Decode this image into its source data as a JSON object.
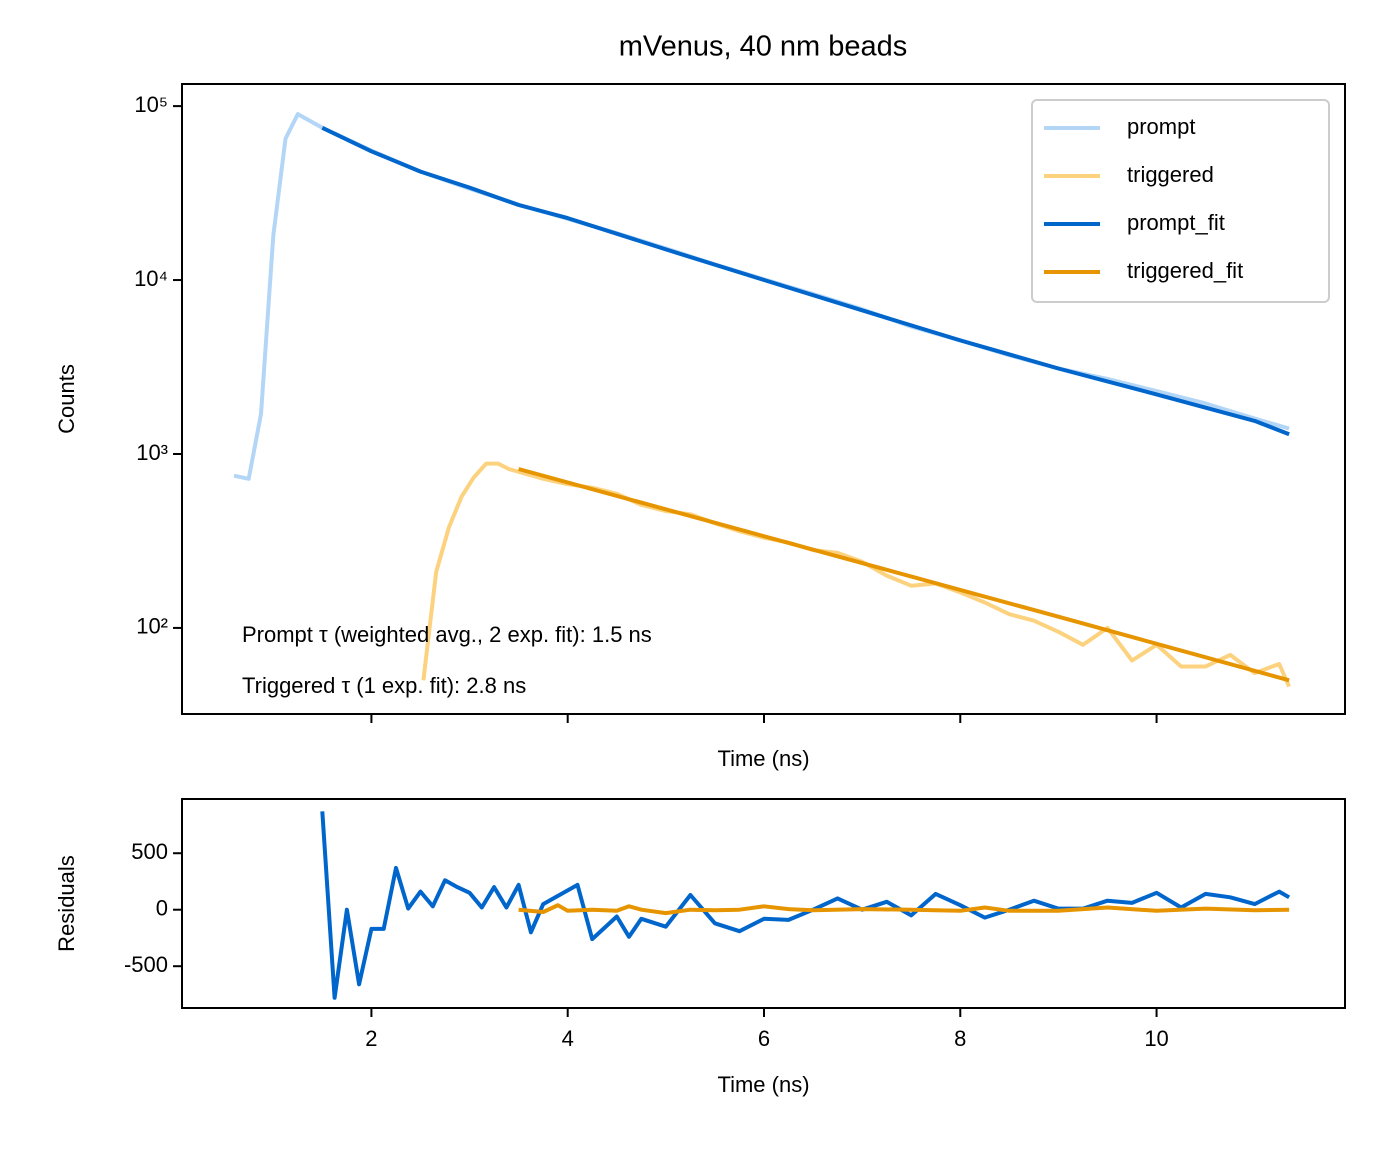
{
  "chart_data": [
    {
      "type": "line",
      "title": "mVenus, 40 nm beads",
      "xlabel": "Time (ns)",
      "ylabel": "Counts",
      "yscale": "log",
      "xlim": [
        0.07,
        11.92
      ],
      "xticks": [
        2,
        4,
        6,
        8,
        10
      ],
      "ylim": [
        32,
        134000
      ],
      "yticks": [
        {
          "value": 100,
          "label": "10²"
        },
        {
          "value": 1000,
          "label": "10³"
        },
        {
          "value": 10000,
          "label": "10⁴"
        },
        {
          "value": 100000,
          "label": "10⁵"
        }
      ],
      "legend": "upper right",
      "annotations": [
        "Prompt τ (weighted avg., 2 exp. fit): 1.5 ns",
        "Triggered τ (1 exp. fit): 2.8 ns"
      ],
      "series": [
        {
          "name": "prompt",
          "color": "#b3d6f6",
          "x": [
            0.6,
            0.75,
            0.875,
            1.0,
            1.125,
            1.25,
            1.5,
            2,
            2.5,
            3,
            3.5,
            4,
            4.5,
            5,
            5.5,
            6,
            6.5,
            7,
            7.5,
            8,
            8.5,
            9,
            9.5,
            10,
            10.5,
            11,
            11.35
          ],
          "values": [
            750,
            720,
            1700,
            18000,
            65000,
            90000,
            75000,
            55500,
            42000,
            33500,
            27200,
            22500,
            18600,
            15200,
            12300,
            10100,
            8300,
            6800,
            5400,
            4500,
            3700,
            3100,
            2700,
            2300,
            1950,
            1600,
            1400
          ]
        },
        {
          "name": "triggered",
          "color": "#fcd27f",
          "x": [
            2.53,
            2.66,
            2.79,
            2.92,
            3.04,
            3.17,
            3.29,
            3.4,
            3.75,
            4,
            4.25,
            4.5,
            4.75,
            5,
            5.25,
            5.5,
            5.75,
            6,
            6.25,
            6.5,
            6.75,
            7,
            7.25,
            7.5,
            7.75,
            8,
            8.25,
            8.5,
            8.75,
            9,
            9.25,
            9.5,
            9.75,
            10,
            10.25,
            10.5,
            10.75,
            11,
            11.25,
            11.35
          ],
          "values": [
            50,
            210,
            380,
            570,
            730,
            880,
            880,
            820,
            720,
            670,
            640,
            590,
            510,
            470,
            450,
            400,
            360,
            330,
            310,
            280,
            270,
            240,
            200,
            175,
            180,
            160,
            140,
            120,
            110,
            95,
            80,
            100,
            65,
            80,
            60,
            60,
            70,
            55,
            62,
            46
          ]
        },
        {
          "name": "prompt_fit",
          "color": "#0066cc",
          "x": [
            1.5,
            2,
            2.5,
            3,
            3.5,
            4,
            5,
            6,
            7,
            8,
            9,
            10,
            11,
            11.35
          ],
          "values": [
            75000,
            55000,
            42000,
            34000,
            27000,
            22700,
            15000,
            10000,
            6700,
            4500,
            3100,
            2200,
            1550,
            1300
          ]
        },
        {
          "name": "triggered_fit",
          "color": "#e69500",
          "x": [
            3.5,
            5,
            7,
            9,
            11.35
          ],
          "values": [
            820,
            481,
            236,
            116,
            50
          ]
        }
      ]
    },
    {
      "type": "line",
      "xlabel": "Time (ns)",
      "ylabel": "Residuals",
      "xlim": [
        0.07,
        11.92
      ],
      "xticks": [
        2,
        4,
        6,
        8,
        10
      ],
      "ylim": [
        -870,
        980
      ],
      "yticks": [
        -500,
        0,
        500
      ],
      "series": [
        {
          "color": "#0066cc",
          "x": [
            1.5,
            1.625,
            1.75,
            1.875,
            2,
            2.125,
            2.25,
            2.375,
            2.5,
            2.625,
            2.75,
            2.875,
            3,
            3.125,
            3.25,
            3.375,
            3.5,
            3.625,
            3.75,
            4.1,
            4.25,
            4.5,
            4.625,
            4.75,
            5,
            5.25,
            5.5,
            5.75,
            6,
            6.25,
            6.5,
            6.75,
            7,
            7.25,
            7.5,
            7.75,
            8,
            8.25,
            8.5,
            8.75,
            9,
            9.25,
            9.5,
            9.75,
            10,
            10.25,
            10.5,
            10.75,
            11,
            11.25,
            11.35
          ],
          "values": [
            870,
            -780,
            0,
            -660,
            -170,
            -170,
            370,
            10,
            160,
            30,
            260,
            200,
            150,
            20,
            200,
            20,
            220,
            -200,
            50,
            220,
            -260,
            -60,
            -240,
            -80,
            -150,
            130,
            -120,
            -190,
            -80,
            -90,
            0,
            100,
            0,
            70,
            -50,
            140,
            40,
            -70,
            0,
            80,
            10,
            10,
            80,
            60,
            150,
            20,
            140,
            110,
            50,
            160,
            110
          ]
        },
        {
          "color": "#e69500",
          "x": [
            3.5,
            3.75,
            3.9,
            4,
            4.25,
            4.5,
            4.625,
            4.75,
            5,
            5.25,
            5.5,
            5.75,
            6,
            6.25,
            6.5,
            7,
            7.5,
            8,
            8.25,
            8.5,
            9,
            9.5,
            10,
            10.5,
            11,
            11.35
          ],
          "values": [
            0,
            -20,
            40,
            -10,
            0,
            -10,
            30,
            0,
            -30,
            0,
            -5,
            0,
            30,
            5,
            -5,
            5,
            0,
            -10,
            20,
            -10,
            -10,
            20,
            -10,
            10,
            -5,
            0
          ]
        }
      ]
    }
  ]
}
